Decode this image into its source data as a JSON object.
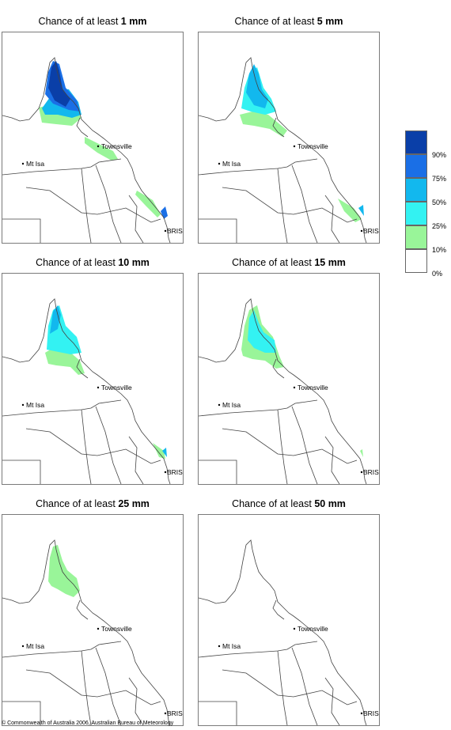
{
  "panels": [
    {
      "title_prefix": "Chance of at least ",
      "amount": "1 mm"
    },
    {
      "title_prefix": "Chance of at least ",
      "amount": "5 mm"
    },
    {
      "title_prefix": "Chance of at least ",
      "amount": "10 mm"
    },
    {
      "title_prefix": "Chance of at least ",
      "amount": "15 mm"
    },
    {
      "title_prefix": "Chance of at least ",
      "amount": "25 mm"
    },
    {
      "title_prefix": "Chance of at least ",
      "amount": "50 mm"
    }
  ],
  "map_labels": {
    "mt_isa": "Mt Isa",
    "townsville": "Townsville",
    "brisbane": "BRIS"
  },
  "legend": [
    {
      "label": "90%",
      "color": "#0a3fa8"
    },
    {
      "label": "75%",
      "color": "#1a6fe6"
    },
    {
      "label": "50%",
      "color": "#12b8ee"
    },
    {
      "label": "25%",
      "color": "#33f2f2"
    },
    {
      "label": "10%",
      "color": "#99f599"
    },
    {
      "label": "0%",
      "color": "#ffffff"
    }
  ],
  "copyright": "© Commonwealth of Australia 2006, Australian Bureau of Meteorology"
}
